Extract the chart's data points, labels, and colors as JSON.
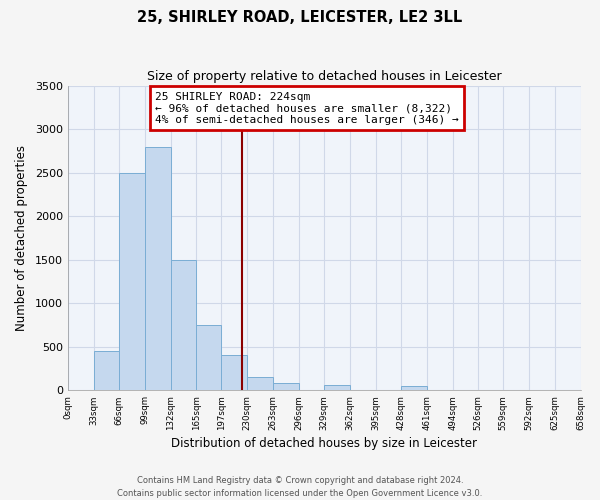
{
  "title": "25, SHIRLEY ROAD, LEICESTER, LE2 3LL",
  "subtitle": "Size of property relative to detached houses in Leicester",
  "xlabel": "Distribution of detached houses by size in Leicester",
  "ylabel": "Number of detached properties",
  "bin_edges": [
    0,
    33,
    66,
    99,
    132,
    165,
    197,
    230,
    263,
    296,
    329,
    362,
    395,
    428,
    461,
    494,
    526,
    559,
    592,
    625,
    658
  ],
  "bar_heights": [
    0,
    450,
    2500,
    2800,
    1500,
    750,
    400,
    150,
    80,
    0,
    60,
    0,
    0,
    50,
    0,
    0,
    0,
    0,
    0,
    0
  ],
  "bar_color": "#c5d8ee",
  "bar_edge_color": "#7aadd4",
  "vline_x": 224,
  "vline_color": "#8b0000",
  "annotation_title": "25 SHIRLEY ROAD: 224sqm",
  "annotation_line1": "← 96% of detached houses are smaller (8,322)",
  "annotation_line2": "4% of semi-detached houses are larger (346) →",
  "annotation_box_color": "#ffffff",
  "annotation_box_edge_color": "#cc0000",
  "ylim": [
    0,
    3500
  ],
  "tick_labels": [
    "0sqm",
    "33sqm",
    "66sqm",
    "99sqm",
    "132sqm",
    "165sqm",
    "197sqm",
    "230sqm",
    "263sqm",
    "296sqm",
    "329sqm",
    "362sqm",
    "395sqm",
    "428sqm",
    "461sqm",
    "494sqm",
    "526sqm",
    "559sqm",
    "592sqm",
    "625sqm",
    "658sqm"
  ],
  "footer1": "Contains HM Land Registry data © Crown copyright and database right 2024.",
  "footer2": "Contains public sector information licensed under the Open Government Licence v3.0.",
  "background_color": "#f5f5f5",
  "grid_color": "#d0d8e8",
  "plot_bg_color": "#f0f4fa"
}
